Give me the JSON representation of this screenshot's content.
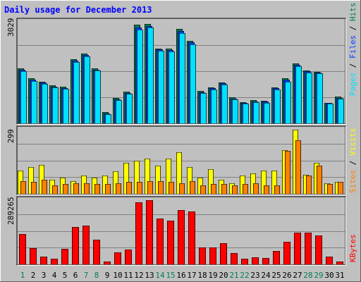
{
  "title": "Daily usage for December 2013",
  "colors": {
    "title": "#0000ff",
    "frame_bg": "#c0c0c0",
    "panel_bg": "#c0c0c0",
    "grid": "#808080",
    "hits": "#008050",
    "files": "#0040ff",
    "pages": "#00e0ff",
    "visits": "#ffff00",
    "sites": "#ff8000",
    "kbytes": "#ff0000",
    "weekday": "#000000",
    "weekend": "#008050"
  },
  "chart_data": [
    {
      "type": "bar",
      "panel": "pages-files-hits",
      "ymax_label": "3029",
      "ylim": [
        0,
        3029
      ],
      "grid": true,
      "right_labels": [
        "Pages",
        "Files",
        "Hits"
      ],
      "categories": [
        "1",
        "2",
        "3",
        "4",
        "5",
        "6",
        "7",
        "8",
        "9",
        "10",
        "11",
        "12",
        "13",
        "14",
        "15",
        "16",
        "17",
        "18",
        "19",
        "20",
        "21",
        "22",
        "23",
        "24",
        "25",
        "26",
        "27",
        "28",
        "29",
        "30",
        "31"
      ],
      "series": [
        {
          "name": "Hits",
          "values": [
            1640,
            1340,
            1250,
            1130,
            1090,
            1920,
            2090,
            1640,
            340,
            760,
            950,
            2940,
            2960,
            2240,
            2240,
            2810,
            2460,
            960,
            1080,
            1220,
            770,
            640,
            690,
            680,
            1080,
            1340,
            1780,
            1580,
            1540,
            620,
            790
          ]
        },
        {
          "name": "Files",
          "values": [
            1600,
            1300,
            1210,
            1100,
            1060,
            1880,
            2040,
            1600,
            300,
            720,
            910,
            2870,
            2900,
            2200,
            2190,
            2750,
            2410,
            930,
            1050,
            1190,
            740,
            610,
            660,
            650,
            1050,
            1300,
            1740,
            1550,
            1510,
            600,
            760
          ]
        },
        {
          "name": "Pages",
          "values": [
            1560,
            1260,
            1180,
            1070,
            1030,
            1820,
            1990,
            1570,
            270,
            690,
            880,
            2790,
            2860,
            2160,
            2150,
            2690,
            2350,
            900,
            1020,
            1150,
            710,
            580,
            630,
            620,
            1020,
            1250,
            1700,
            1520,
            1490,
            580,
            730
          ]
        }
      ]
    },
    {
      "type": "bar",
      "panel": "sites-visits",
      "ymax_label": "299",
      "ylim": [
        0,
        299
      ],
      "grid": true,
      "right_labels": [
        "Sites",
        "Visits"
      ],
      "categories": [
        "1",
        "2",
        "3",
        "4",
        "5",
        "6",
        "7",
        "8",
        "9",
        "10",
        "11",
        "12",
        "13",
        "14",
        "15",
        "16",
        "17",
        "18",
        "19",
        "20",
        "21",
        "22",
        "23",
        "24",
        "25",
        "26",
        "27",
        "28",
        "29",
        "30",
        "31"
      ],
      "series": [
        {
          "name": "Visits",
          "values": [
            110,
            125,
            135,
            65,
            75,
            60,
            85,
            75,
            85,
            105,
            145,
            155,
            165,
            130,
            165,
            195,
            125,
            75,
            115,
            65,
            50,
            85,
            95,
            110,
            110,
            205,
            299,
            90,
            145,
            50,
            55
          ]
        },
        {
          "name": "Sites",
          "values": [
            60,
            55,
            65,
            40,
            45,
            50,
            50,
            45,
            45,
            50,
            55,
            55,
            60,
            60,
            55,
            50,
            60,
            40,
            45,
            45,
            40,
            45,
            50,
            40,
            40,
            200,
            250,
            85,
            130,
            45,
            55
          ]
        }
      ]
    },
    {
      "type": "bar",
      "panel": "kbytes",
      "ymax_label": "289265",
      "ylim": [
        0,
        289265
      ],
      "grid": true,
      "right_labels": [
        "KBytes"
      ],
      "categories": [
        "1",
        "2",
        "3",
        "4",
        "5",
        "6",
        "7",
        "8",
        "9",
        "10",
        "11",
        "12",
        "13",
        "14",
        "15",
        "16",
        "17",
        "18",
        "19",
        "20",
        "21",
        "22",
        "23",
        "24",
        "25",
        "26",
        "27",
        "28",
        "29",
        "30",
        "31"
      ],
      "series": [
        {
          "name": "KBytes",
          "values": [
            138000,
            72000,
            35000,
            24000,
            70000,
            167000,
            175000,
            112000,
            12000,
            55000,
            68000,
            280000,
            289000,
            208000,
            196000,
            246000,
            237000,
            77000,
            75000,
            95000,
            50000,
            27000,
            32000,
            30000,
            59000,
            102000,
            142000,
            142000,
            131000,
            34000,
            14000
          ]
        }
      ]
    }
  ],
  "x_axis": {
    "labels": [
      "1",
      "2",
      "3",
      "4",
      "5",
      "6",
      "7",
      "8",
      "9",
      "10",
      "11",
      "12",
      "13",
      "14",
      "15",
      "16",
      "17",
      "18",
      "19",
      "20",
      "21",
      "22",
      "23",
      "24",
      "25",
      "26",
      "27",
      "28",
      "29",
      "30",
      "31"
    ],
    "weekend_days": [
      "1",
      "7",
      "8",
      "14",
      "15",
      "21",
      "22",
      "28",
      "29"
    ]
  }
}
